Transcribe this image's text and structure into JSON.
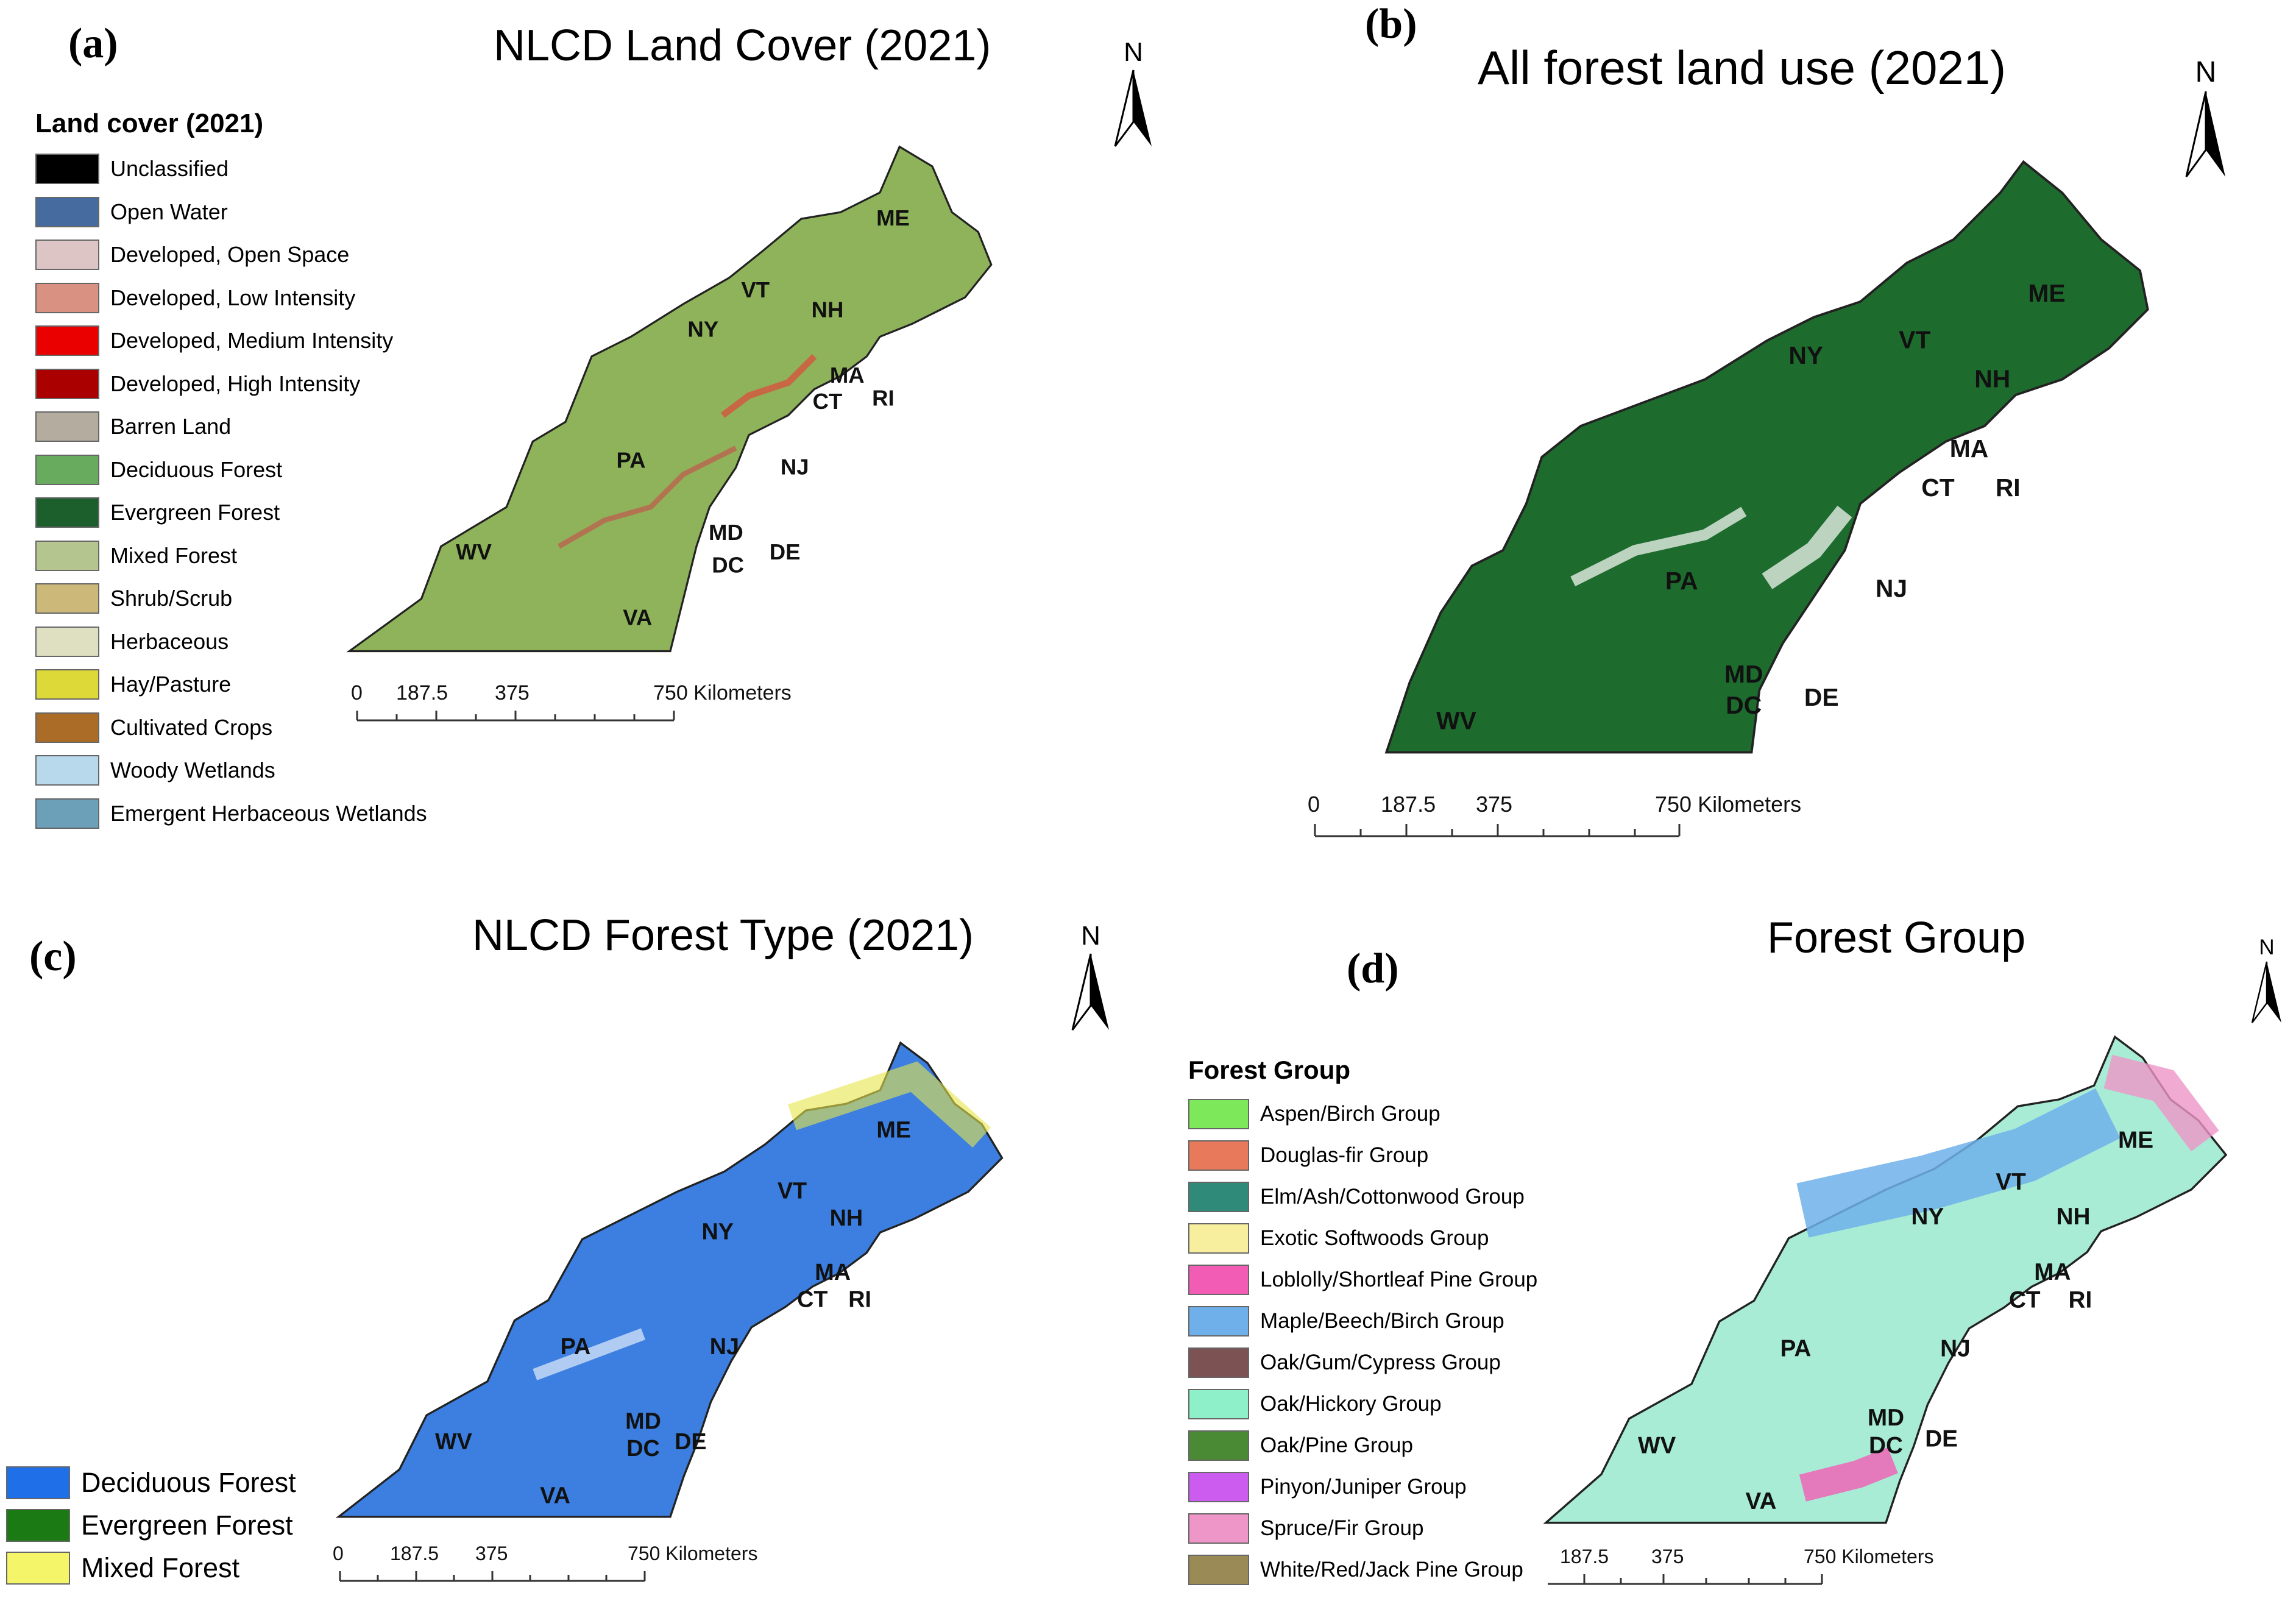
{
  "panels": {
    "a": {
      "letter": "(a)",
      "title": "NLCD Land Cover (2021)",
      "legend_title": "Land cover (2021)",
      "legend": [
        {
          "label": "Unclassified",
          "color": "#000000"
        },
        {
          "label": "Open Water",
          "color": "#466b9f"
        },
        {
          "label": "Developed, Open Space",
          "color": "#dec5c5"
        },
        {
          "label": "Developed, Low Intensity",
          "color": "#d99282"
        },
        {
          "label": "Developed, Medium Intensity",
          "color": "#eb0000"
        },
        {
          "label": "Developed, High Intensity",
          "color": "#ab0000"
        },
        {
          "label": "Barren Land",
          "color": "#b3ac9f"
        },
        {
          "label": "Deciduous Forest",
          "color": "#68ab5f"
        },
        {
          "label": "Evergreen Forest",
          "color": "#1c5f2c"
        },
        {
          "label": "Mixed Forest",
          "color": "#b5c58f"
        },
        {
          "label": "Shrub/Scrub",
          "color": "#ccb879"
        },
        {
          "label": "Herbaceous",
          "color": "#dfdfc2"
        },
        {
          "label": "Hay/Pasture",
          "color": "#dcd939"
        },
        {
          "label": "Cultivated Crops",
          "color": "#ab6c28"
        },
        {
          "label": "Woody Wetlands",
          "color": "#b8d9eb"
        },
        {
          "label": "Emergent Herbaceous Wetlands",
          "color": "#6c9fb8"
        }
      ],
      "map_fill": "#8fb35a",
      "scale": {
        "ticks": [
          "0",
          "187.5",
          "375"
        ],
        "end": "750 Kilometers"
      }
    },
    "b": {
      "letter": "(b)",
      "title": "All forest land use (2021)",
      "map_fill": "#1e6b2e",
      "scale": {
        "ticks": [
          "0",
          "187.5",
          "375"
        ],
        "end": "750 Kilometers"
      }
    },
    "c": {
      "letter": "(c)",
      "title": "NLCD Forest Type (2021)",
      "legend": [
        {
          "label": "Deciduous Forest",
          "color": "#1f6fe8"
        },
        {
          "label": "Evergreen Forest",
          "color": "#1c7a14"
        },
        {
          "label": "Mixed Forest",
          "color": "#f5f56a"
        }
      ],
      "map_fill": "#3c7fe0",
      "scale": {
        "ticks": [
          "0",
          "187.5",
          "375"
        ],
        "end": "750 Kilometers"
      }
    },
    "d": {
      "letter": "(d)",
      "title": "Forest Group",
      "legend_title": "Forest Group",
      "legend": [
        {
          "label": "Aspen/Birch Group",
          "color": "#7ee85b"
        },
        {
          "label": "Douglas-fir Group",
          "color": "#e8795a"
        },
        {
          "label": "Elm/Ash/Cottonwood Group",
          "color": "#2f8a7a"
        },
        {
          "label": "Exotic Softwoods Group",
          "color": "#f7ee9e"
        },
        {
          "label": "Loblolly/Shortleaf Pine Group",
          "color": "#f25cb5"
        },
        {
          "label": "Maple/Beech/Birch Group",
          "color": "#6fb0ea"
        },
        {
          "label": "Oak/Gum/Cypress Group",
          "color": "#7d5252"
        },
        {
          "label": "Oak/Hickory Group",
          "color": "#8ef0c8"
        },
        {
          "label": "Oak/Pine Group",
          "color": "#4a8a34"
        },
        {
          "label": "Pinyon/Juniper Group",
          "color": "#cc5cf0"
        },
        {
          "label": "Spruce/Fir Group",
          "color": "#ee96c8"
        },
        {
          "label": "White/Red/Jack Pine Group",
          "color": "#9a8a55"
        }
      ],
      "map_fill": "#a8ecd6",
      "scale": {
        "ticks": [
          "187.5",
          "375"
        ],
        "end": "750 Kilometers"
      }
    }
  },
  "north_label": "N",
  "states": [
    "ME",
    "VT",
    "NH",
    "NY",
    "MA",
    "CT",
    "RI",
    "PA",
    "NJ",
    "MD",
    "DC",
    "DE",
    "WV",
    "VA"
  ]
}
